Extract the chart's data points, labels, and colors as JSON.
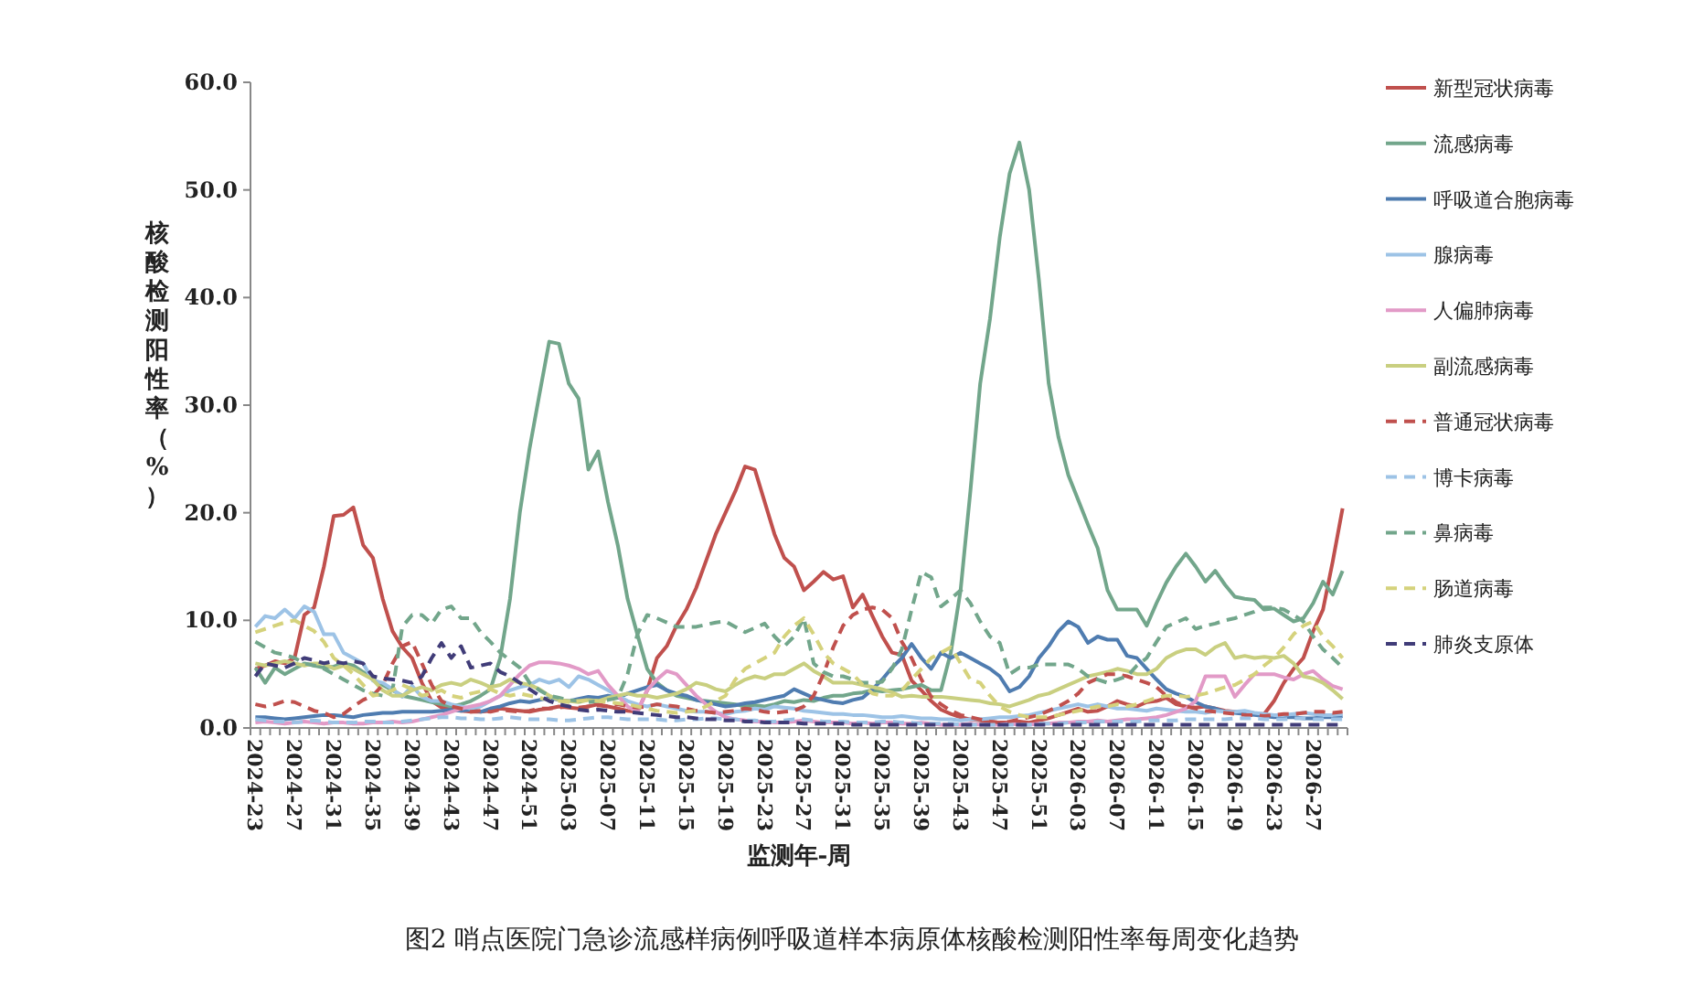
{
  "chart_data": {
    "type": "line",
    "title": "图2 哨点医院门急诊流感样病例呼吸道样本病原体核酸检测阳性率每周变化趋势",
    "xlabel": "监测年-周",
    "ylabel": "核酸检测阳性率（%）",
    "categories": [
      "2024-23",
      null,
      null,
      null,
      "2024-27",
      null,
      null,
      null,
      "2024-31",
      null,
      null,
      null,
      "2024-35",
      null,
      null,
      null,
      "2024-39",
      null,
      null,
      null,
      "2024-43",
      null,
      null,
      null,
      "2024-47",
      null,
      null,
      null,
      "2024-51",
      null,
      null,
      null,
      "2025-03",
      null,
      null,
      null,
      "2025-07",
      null,
      null,
      null,
      "2025-11",
      null,
      null,
      null,
      "2025-15",
      null,
      null,
      null,
      "2025-19",
      null,
      null,
      null,
      "2025-23",
      null,
      null,
      null,
      "2025-27",
      null,
      null,
      null,
      "2025-31",
      null,
      null,
      null,
      "2025-35",
      null,
      null,
      null,
      "2025-39",
      null,
      null,
      null,
      "2025-43",
      null,
      null,
      null,
      "2025-47",
      null,
      null,
      null,
      "2025-51",
      null,
      null,
      null,
      "2026-03",
      null,
      null,
      null,
      "2026-07",
      null,
      null,
      null,
      "2026-11",
      null,
      null,
      null,
      "2026-15",
      null,
      null,
      null,
      "2026-19",
      null,
      null,
      null,
      "2026-23",
      null,
      null,
      null,
      "2026-27",
      null,
      null,
      null
    ],
    "ylim": [
      0,
      60
    ],
    "yticks": [
      {
        "value": 0,
        "label": "0.0"
      },
      {
        "value": 10,
        "label": "10.0"
      },
      {
        "value": 20,
        "label": "20.0"
      },
      {
        "value": 30,
        "label": "30.0"
      },
      {
        "value": 40,
        "label": "40.0"
      },
      {
        "value": 50,
        "label": "50.0"
      },
      {
        "value": 60,
        "label": "60.0"
      }
    ],
    "grid": false,
    "legend": "right",
    "marker": "none",
    "series": [
      {
        "name": "新型冠状病毒",
        "color": "#c0504d",
        "line_style": "solid",
        "values": [
          5.5,
          5.8,
          6.2,
          6.0,
          6.5,
          10.5,
          11.2,
          15,
          19.7,
          19.8,
          20.5,
          17,
          15.8,
          12,
          9,
          7.5,
          6.5,
          4.2,
          2.5,
          1.9,
          1.8,
          1.6,
          1.5,
          1.5,
          1.6,
          1.8,
          1.7,
          1.6,
          1.5,
          1.7,
          1.8,
          2.0,
          1.9,
          1.8,
          2.0,
          2.2,
          2.0,
          1.8,
          1.6,
          1.5,
          3.5,
          6.5,
          7.6,
          9.5,
          11,
          13,
          15.5,
          18,
          20,
          22,
          24.3,
          24,
          21,
          18,
          15.8,
          15,
          12.8,
          13.6,
          14.5,
          13.8,
          14.1,
          11.2,
          12.4,
          10.4,
          8.5,
          7,
          6.8,
          4.4,
          3.5,
          2.5,
          1.7,
          1.3,
          1.0,
          0.8,
          0.7,
          0.6,
          0.5,
          0.5,
          0.6,
          0.5,
          0.7,
          0.9,
          1.2,
          1.5,
          1.8,
          1.5,
          1.6,
          2.0,
          2.5,
          2.2,
          2.0,
          2.4,
          2.5,
          2.8,
          2.2,
          2.0,
          1.9,
          2.0,
          1.8,
          1.6,
          1.5,
          1.4,
          1.3,
          1.3,
          2.5,
          4.2,
          5.5,
          6.5,
          9,
          11,
          15.5,
          20.4
        ]
      },
      {
        "name": "流感病毒",
        "color": "#72a68b",
        "line_style": "solid",
        "values": [
          5.6,
          4.2,
          5.6,
          5.0,
          5.5,
          6.0,
          5.8,
          5.6,
          5.7,
          6.0,
          5.8,
          5.2,
          4.5,
          4.0,
          3.5,
          3.0,
          2.8,
          2.6,
          2.4,
          2.2,
          2.0,
          2.2,
          2.5,
          3.0,
          3.6,
          6.5,
          12,
          20,
          26,
          31,
          35.9,
          35.7,
          32,
          30.6,
          24,
          25.7,
          21,
          17,
          12,
          8.7,
          5.5,
          4.2,
          3.5,
          3.0,
          2.8,
          2.6,
          2.5,
          2.4,
          2.3,
          2.2,
          2.0,
          2.1,
          2.0,
          2.2,
          2.5,
          2.4,
          2.6,
          2.5,
          2.8,
          3.0,
          3.0,
          3.2,
          3.3,
          3.5,
          3.4,
          3.5,
          3.6,
          3.8,
          4.0,
          3.5,
          3.5,
          7,
          12.8,
          22,
          32,
          38,
          45.6,
          51.5,
          54.4,
          50,
          41.6,
          32,
          27,
          23.5,
          21.2,
          18.9,
          16.7,
          12.8,
          11,
          11,
          11,
          9.5,
          11.6,
          13.5,
          15,
          16.2,
          15,
          13.6,
          14.6,
          13.3,
          12.2,
          12,
          11.9,
          11,
          11.1,
          10.5,
          9.9,
          10.2,
          11.6,
          13.6,
          12.4,
          14.6
        ]
      },
      {
        "name": "呼吸道合胞病毒",
        "color": "#4f7cb0",
        "line_style": "solid",
        "values": [
          1.0,
          1.0,
          0.9,
          0.8,
          0.9,
          1.0,
          1.1,
          1.2,
          1.2,
          1.1,
          1.0,
          1.2,
          1.3,
          1.4,
          1.4,
          1.5,
          1.5,
          1.5,
          1.5,
          1.6,
          1.7,
          1.6,
          1.7,
          1.5,
          1.8,
          2.0,
          2.3,
          2.5,
          2.4,
          2.6,
          2.8,
          2.6,
          2.5,
          2.7,
          2.9,
          2.8,
          3.0,
          2.8,
          3.2,
          3.5,
          3.8,
          4.0,
          3.5,
          3.2,
          3.0,
          2.6,
          2.4,
          2.2,
          2.0,
          2.1,
          2.3,
          2.4,
          2.6,
          2.8,
          3.0,
          3.6,
          3.2,
          2.8,
          2.6,
          2.4,
          2.3,
          2.6,
          2.8,
          3.6,
          4.5,
          5.6,
          6.5,
          7.8,
          6.5,
          5.5,
          7,
          6.5,
          7,
          6.5,
          6,
          5.5,
          4.8,
          3.4,
          3.8,
          4.8,
          6.5,
          7.6,
          9,
          9.9,
          9.4,
          7.9,
          8.5,
          8.2,
          8.2,
          6.7,
          6.5,
          5.5,
          4.5,
          3.6,
          3.2,
          2.9,
          2.4,
          2.0,
          1.8,
          1.5,
          1.4,
          1.3,
          1.2,
          1.1,
          1.0,
          1.0,
          1.0,
          0.9,
          0.9,
          1.0,
          1.0,
          1.1
        ]
      },
      {
        "name": "腺病毒",
        "color": "#9dc3e6",
        "line_style": "solid",
        "values": [
          9.4,
          10.4,
          10.2,
          11.0,
          10.2,
          11.3,
          10.8,
          8.7,
          8.7,
          7.0,
          6.5,
          6.0,
          4.4,
          4.2,
          3.6,
          2.9,
          3.9,
          2.9,
          2.5,
          2.5,
          2.2,
          2.0,
          1.8,
          2.0,
          2.5,
          3.0,
          3.5,
          3.8,
          4.0,
          4.5,
          4.2,
          4.5,
          3.8,
          4.8,
          4.5,
          4.0,
          3.5,
          3.0,
          2.5,
          2.2,
          2.0,
          2.2,
          2.0,
          1.8,
          1.6,
          1.5,
          1.5,
          1.4,
          1.3,
          1.5,
          1.6,
          1.8,
          1.7,
          2.0,
          1.9,
          1.8,
          1.6,
          1.5,
          1.4,
          1.3,
          1.3,
          1.2,
          1.2,
          1.1,
          1.0,
          1.0,
          1.1,
          1.0,
          0.9,
          0.9,
          0.8,
          0.8,
          0.7,
          0.8,
          0.8,
          0.9,
          1.0,
          1.0,
          1.1,
          1.2,
          1.4,
          1.6,
          1.8,
          2.0,
          2.2,
          2.0,
          2.2,
          2.0,
          1.8,
          1.8,
          1.7,
          1.6,
          1.8,
          1.7,
          1.6,
          1.5,
          1.5,
          1.4,
          1.6,
          1.5,
          1.5,
          1.6,
          1.4,
          1.3,
          1.2,
          1.2,
          1.3,
          1.4,
          1.3,
          1.2,
          1.2,
          1.3
        ]
      },
      {
        "name": "人偏肺病毒",
        "color": "#e29ac7",
        "line_style": "solid",
        "values": [
          0.5,
          0.6,
          0.5,
          0.4,
          0.5,
          0.6,
          0.5,
          0.4,
          0.5,
          0.5,
          0.4,
          0.4,
          0.5,
          0.5,
          0.6,
          0.5,
          0.6,
          0.8,
          1.0,
          1.2,
          1.5,
          1.8,
          2.0,
          2.2,
          2.5,
          3.0,
          4.0,
          5.0,
          5.8,
          6.1,
          6.1,
          6.0,
          5.8,
          5.5,
          5.0,
          5.3,
          4.0,
          3.0,
          2.0,
          1.5,
          3.5,
          4.5,
          5.3,
          5.0,
          4.0,
          3.0,
          2.2,
          1.5,
          1.0,
          0.8,
          0.7,
          0.6,
          0.6,
          0.5,
          0.5,
          0.6,
          0.7,
          0.6,
          0.5,
          0.5,
          0.5,
          0.4,
          0.5,
          0.4,
          0.5,
          0.5,
          0.4,
          0.4,
          0.5,
          0.4,
          0.3,
          0.3,
          0.3,
          0.4,
          0.3,
          0.3,
          0.3,
          0.4,
          0.3,
          0.3,
          0.4,
          0.4,
          0.5,
          0.5,
          0.6,
          0.6,
          0.7,
          0.6,
          0.7,
          0.8,
          0.8,
          0.9,
          1.0,
          1.2,
          1.5,
          1.8,
          2.5,
          4.8,
          4.8,
          4.8,
          2.9,
          4.0,
          5.0,
          5.0,
          5.0,
          4.7,
          4.5,
          5.0,
          5.3,
          4.5,
          3.9,
          3.6
        ]
      },
      {
        "name": "副流感病毒",
        "color": "#c9cf80",
        "line_style": "solid",
        "values": [
          6.0,
          5.8,
          6.0,
          6.2,
          6.0,
          5.8,
          6.0,
          6.0,
          5.5,
          5.8,
          5.5,
          5.0,
          4.5,
          3.5,
          3.0,
          3.0,
          3.5,
          3.8,
          3.5,
          4.0,
          4.2,
          4.0,
          4.5,
          4.2,
          3.8,
          4.0,
          4.5,
          4.2,
          4.0,
          3.6,
          3.0,
          2.6,
          2.5,
          2.4,
          2.6,
          2.5,
          2.8,
          3.0,
          3.2,
          3.0,
          3.0,
          2.8,
          3.0,
          3.2,
          3.6,
          4.2,
          4.0,
          3.6,
          3.4,
          4.0,
          4.5,
          4.8,
          4.6,
          5.0,
          5.0,
          5.5,
          6.0,
          5.3,
          4.8,
          4.2,
          4.2,
          4.2,
          4.0,
          3.8,
          3.6,
          3.3,
          2.9,
          3.0,
          2.9,
          2.9,
          2.9,
          2.8,
          2.7,
          2.6,
          2.5,
          2.3,
          2.2,
          2.0,
          2.3,
          2.6,
          3.0,
          3.2,
          3.6,
          4.0,
          4.4,
          4.8,
          5.0,
          5.2,
          5.5,
          5.3,
          5.0,
          5.0,
          5.5,
          6.5,
          7.0,
          7.3,
          7.3,
          6.8,
          7.5,
          7.9,
          6.5,
          6.7,
          6.5,
          6.6,
          6.5,
          6.7,
          6.0,
          4.8,
          4.6,
          4.2,
          3.5,
          2.7
        ]
      },
      {
        "name": "普通冠状病毒",
        "color": "#c0504d",
        "line_style": "dashed",
        "values": [
          2.2,
          2.0,
          2.2,
          2.5,
          2.4,
          2.0,
          1.6,
          1.4,
          1.0,
          1.3,
          2.0,
          2.6,
          3.0,
          4.0,
          6.0,
          7.6,
          8.0,
          6.0,
          4.0,
          2.5,
          2.0,
          1.8,
          1.5,
          1.6,
          1.5,
          1.7,
          1.6,
          1.5,
          1.6,
          1.8,
          1.8,
          1.9,
          2.0,
          1.9,
          2.0,
          2.1,
          2.0,
          2.2,
          2.0,
          1.9,
          2.0,
          2.2,
          2.1,
          2.0,
          1.8,
          1.6,
          1.5,
          1.4,
          1.5,
          1.6,
          1.8,
          1.7,
          1.5,
          1.4,
          1.5,
          1.6,
          2.0,
          3.0,
          5.0,
          7.5,
          9.5,
          10.5,
          11.0,
          11.2,
          11.0,
          10.2,
          8.0,
          6.5,
          4.5,
          2.9,
          2.2,
          1.6,
          1.2,
          1.0,
          0.8,
          0.6,
          0.5,
          0.6,
          0.8,
          1.0,
          1.2,
          1.6,
          2.0,
          2.5,
          3.2,
          4.2,
          4.6,
          5.0,
          5.0,
          4.8,
          4.5,
          4.2,
          3.8,
          3.0,
          2.4,
          2.0,
          1.8,
          1.6,
          1.5,
          1.4,
          1.3,
          1.2,
          1.2,
          1.1,
          1.2,
          1.3,
          1.3,
          1.4,
          1.5,
          1.5,
          1.4,
          1.5
        ]
      },
      {
        "name": "博卡病毒",
        "color": "#9dc3e6",
        "line_style": "dashed",
        "values": [
          0.8,
          0.7,
          0.6,
          0.6,
          0.5,
          0.6,
          0.7,
          0.6,
          0.5,
          0.5,
          0.5,
          0.6,
          0.6,
          0.5,
          0.5,
          0.6,
          0.7,
          0.8,
          0.9,
          1.0,
          1.0,
          0.9,
          0.9,
          0.8,
          0.8,
          0.9,
          1.0,
          0.9,
          0.8,
          0.8,
          0.8,
          0.7,
          0.7,
          0.8,
          0.9,
          1.0,
          1.0,
          0.9,
          0.8,
          0.8,
          0.8,
          0.8,
          0.7,
          0.7,
          0.8,
          0.8,
          0.9,
          0.9,
          0.8,
          0.8,
          0.7,
          0.7,
          0.6,
          0.6,
          0.7,
          0.8,
          0.8,
          0.7,
          0.6,
          0.6,
          0.6,
          0.5,
          0.5,
          0.5,
          0.6,
          0.6,
          0.5,
          0.5,
          0.4,
          0.4,
          0.4,
          0.4,
          0.3,
          0.3,
          0.3,
          0.3,
          0.3,
          0.3,
          0.3,
          0.3,
          0.4,
          0.4,
          0.4,
          0.5,
          0.5,
          0.5,
          0.6,
          0.6,
          0.6,
          0.6,
          0.6,
          0.7,
          0.7,
          0.7,
          0.7,
          0.8,
          0.8,
          0.8,
          0.8,
          0.8,
          0.9,
          0.9,
          0.9,
          0.8,
          0.8,
          0.8,
          0.9,
          0.9,
          0.8,
          0.8,
          0.8,
          0.8
        ]
      },
      {
        "name": "鼻病毒",
        "color": "#72a68b",
        "line_style": "dashed",
        "values": [
          8.0,
          7.5,
          7.0,
          6.8,
          6.5,
          6.0,
          5.8,
          5.5,
          5.0,
          4.5,
          4.0,
          3.5,
          3.2,
          3.0,
          3.5,
          9.4,
          10.5,
          10.5,
          9.7,
          11.0,
          11.3,
          10.2,
          10.2,
          8.9,
          8.0,
          7.0,
          6.3,
          5.6,
          4.2,
          3.5,
          3.0,
          2.8,
          2.6,
          2.5,
          2.4,
          2.5,
          2.6,
          2.8,
          5.0,
          8.7,
          10.5,
          10.2,
          9.8,
          9.4,
          9.4,
          9.4,
          9.6,
          9.8,
          9.9,
          9.4,
          8.9,
          9.3,
          9.7,
          8.5,
          7.6,
          8.5,
          10.2,
          6.0,
          5.2,
          4.8,
          4.8,
          4.5,
          4.2,
          4.2,
          4.3,
          5.5,
          7.3,
          11.0,
          14.5,
          14.0,
          11.3,
          12.0,
          12.8,
          11.6,
          9.9,
          8.5,
          7.9,
          5.0,
          5.6,
          5.6,
          5.9,
          5.9,
          5.9,
          5.9,
          5.5,
          4.8,
          4.5,
          4.2,
          4.5,
          4.8,
          5.8,
          6.5,
          8.0,
          9.4,
          9.8,
          10.2,
          9.2,
          9.5,
          9.7,
          10.0,
          10.2,
          10.5,
          10.8,
          11.2,
          11.2,
          11.0,
          10.5,
          9.9,
          8.5,
          7.3,
          6.5,
          5.6
        ]
      },
      {
        "name": "肠道病毒",
        "color": "#d5d27c",
        "line_style": "dashed",
        "values": [
          8.9,
          9.2,
          9.5,
          9.8,
          10.0,
          9.5,
          9.0,
          8.0,
          6.5,
          5.8,
          5.0,
          4.0,
          3.0,
          3.2,
          3.5,
          4.0,
          3.6,
          3.0,
          3.2,
          3.5,
          3.0,
          2.8,
          3.2,
          3.4,
          3.6,
          3.2,
          3.0,
          3.2,
          3.0,
          2.8,
          2.6,
          2.5,
          2.4,
          2.5,
          2.6,
          2.5,
          2.4,
          2.3,
          2.2,
          2.0,
          1.8,
          1.6,
          1.5,
          1.4,
          1.5,
          1.6,
          2.0,
          2.5,
          3.0,
          4.5,
          5.5,
          6.0,
          6.5,
          7.0,
          8.5,
          9.5,
          10.2,
          8.7,
          7.0,
          6.0,
          5.5,
          5.0,
          4.0,
          3.2,
          3.0,
          3.0,
          3.5,
          4.5,
          5.5,
          6.5,
          7.0,
          7.5,
          6.0,
          4.5,
          4.2,
          3.0,
          2.0,
          1.5,
          1.2,
          1.0,
          1.0,
          1.0,
          1.2,
          1.4,
          1.6,
          1.8,
          2.0,
          2.0,
          2.2,
          2.0,
          2.2,
          2.5,
          2.8,
          3.0,
          3.0,
          2.9,
          3.0,
          3.2,
          3.5,
          3.8,
          4.0,
          4.5,
          5.0,
          5.8,
          6.5,
          7.5,
          8.7,
          9.5,
          9.9,
          8.5,
          7.6,
          6.5
        ]
      },
      {
        "name": "肺炎支原体",
        "color": "#403c78",
        "line_style": "dashed",
        "values": [
          4.8,
          6.0,
          5.8,
          5.6,
          6.0,
          6.5,
          6.3,
          6.0,
          6.2,
          6.0,
          6.2,
          6.0,
          4.8,
          4.6,
          4.5,
          4.4,
          4.2,
          4.8,
          6.5,
          7.9,
          6.5,
          7.6,
          5.6,
          5.8,
          6.0,
          5.2,
          4.8,
          4.2,
          3.6,
          3.0,
          2.5,
          2.2,
          2.0,
          1.7,
          1.6,
          1.7,
          1.6,
          1.5,
          1.5,
          1.4,
          1.3,
          1.2,
          1.1,
          1.0,
          1.0,
          0.9,
          0.8,
          0.8,
          0.7,
          0.7,
          0.6,
          0.6,
          0.5,
          0.5,
          0.5,
          0.5,
          0.4,
          0.4,
          0.4,
          0.4,
          0.4,
          0.3,
          0.3,
          0.3,
          0.3,
          0.3,
          0.3,
          0.3,
          0.3,
          0.3,
          0.3,
          0.3,
          0.3,
          0.3,
          0.3,
          0.3,
          0.3,
          0.3,
          0.3,
          0.3,
          0.3,
          0.3,
          0.3,
          0.3,
          0.3,
          0.3,
          0.3,
          0.3,
          0.3,
          0.3,
          0.3,
          0.3,
          0.3,
          0.3,
          0.3,
          0.3,
          0.3,
          0.3,
          0.3,
          0.3,
          0.3,
          0.3,
          0.3,
          0.3,
          0.3,
          0.3,
          0.3,
          0.3,
          0.3,
          0.3,
          0.3,
          0.3
        ]
      }
    ]
  }
}
